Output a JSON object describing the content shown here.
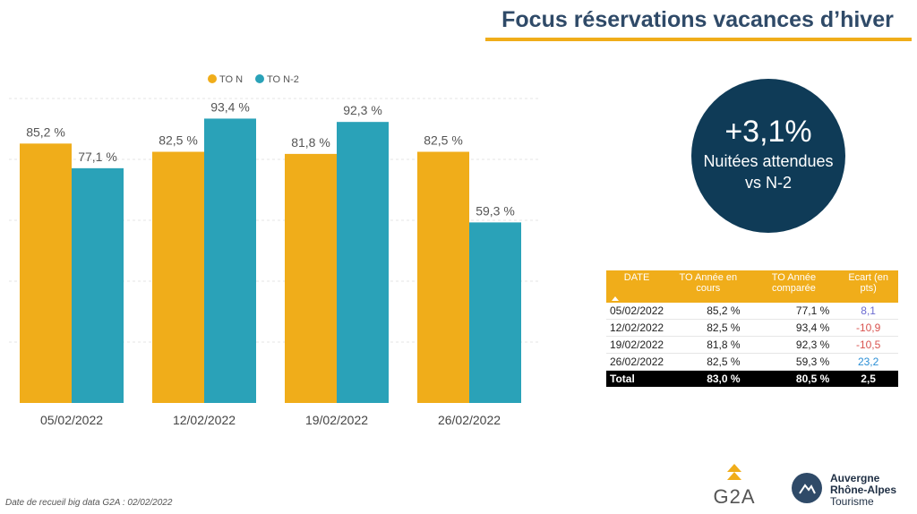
{
  "header": {
    "title": "Focus réservations vacances d’hiver"
  },
  "chart_data": {
    "type": "bar",
    "categories": [
      "05/02/2022",
      "12/02/2022",
      "19/02/2022",
      "26/02/2022"
    ],
    "series": [
      {
        "name": "TO N",
        "values": [
          85.2,
          82.5,
          81.8,
          82.5
        ],
        "labels": [
          "85,2 %",
          "82,5 %",
          "81,8 %",
          "82,5 %"
        ],
        "color": "#f0ad1a"
      },
      {
        "name": "TO N-2",
        "values": [
          77.1,
          93.4,
          92.3,
          59.3
        ],
        "labels": [
          "77,1 %",
          "93,4 %",
          "92,3 %",
          "59,3 %"
        ],
        "color": "#2aa2b8"
      }
    ],
    "ylim": [
      0,
      100
    ],
    "grid": true,
    "legend": "top-left"
  },
  "kpi": {
    "value": "+3,1%",
    "line1": "Nuitées attendues",
    "line2": "vs N-2"
  },
  "table": {
    "headers": [
      "DATE",
      "TO Année en cours",
      "TO Année comparée",
      "Ecart (en pts)"
    ],
    "rows": [
      {
        "date": "05/02/2022",
        "current": "85,2 %",
        "compared": "77,1 %",
        "ecart": "8,1",
        "ecart_color": "#6b6bd1"
      },
      {
        "date": "12/02/2022",
        "current": "82,5 %",
        "compared": "93,4 %",
        "ecart": "-10,9",
        "ecart_color": "#d9534f"
      },
      {
        "date": "19/02/2022",
        "current": "81,8 %",
        "compared": "92,3 %",
        "ecart": "-10,5",
        "ecart_color": "#d9534f"
      },
      {
        "date": "26/02/2022",
        "current": "82,5 %",
        "compared": "59,3 %",
        "ecart": "23,2",
        "ecart_color": "#2b8fd6"
      }
    ],
    "total": {
      "label": "Total",
      "current": "83,0 %",
      "compared": "80,5 %",
      "ecart": "2,5"
    }
  },
  "logos": {
    "g2a": "G2A",
    "region_line1": "Auvergne",
    "region_line2": "Rhône-Alpes",
    "region_line3": "Tourisme"
  },
  "footnote": "Date de recueil big data G2A : 02/02/2022"
}
